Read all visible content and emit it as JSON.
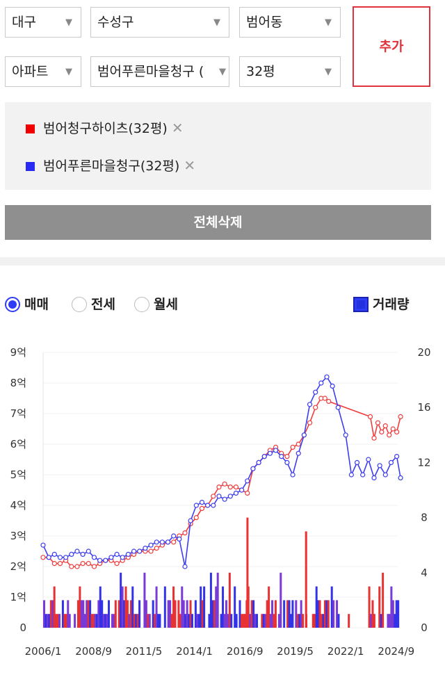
{
  "filters": {
    "city": "대구",
    "district": "수성구",
    "dong": "범어동",
    "type": "아파트",
    "complex": "범어푸른마을청구 (",
    "size": "32평",
    "add_label": "추가"
  },
  "compare": {
    "items": [
      {
        "label": "범어청구하이츠(32평)",
        "color": "#f00000",
        "remove": "✕"
      },
      {
        "label": "범어푸른마을청구(32평)",
        "color": "#2a2af5",
        "remove": "✕"
      }
    ],
    "clear_label": "전체삭제"
  },
  "options": {
    "trade_types": [
      "매매",
      "전세",
      "월세"
    ],
    "selected": "매매",
    "volume_label": "거래량"
  },
  "chart_data": {
    "type": "line",
    "x_ticks": [
      "2006/1",
      "2008/9",
      "2011/5",
      "2014/1",
      "2016/9",
      "2019/5",
      "2022/1",
      "2024/9"
    ],
    "y_left_ticks": [
      "0",
      "1억",
      "2억",
      "3억",
      "4억",
      "5억",
      "6억",
      "7억",
      "8억",
      "9억"
    ],
    "y_left_range": [
      0,
      9
    ],
    "y_right_ticks": [
      "0",
      "4",
      "8",
      "12",
      "16",
      "20"
    ],
    "y_right_range": [
      0,
      20
    ],
    "series": [
      {
        "name": "범어청구하이츠(32평)",
        "color": "#f03c3c",
        "x": [
          2006.0,
          2006.3,
          2006.6,
          2006.9,
          2007.2,
          2007.5,
          2007.8,
          2008.1,
          2008.4,
          2008.7,
          2009.0,
          2009.3,
          2009.6,
          2009.9,
          2010.2,
          2010.5,
          2010.8,
          2011.1,
          2011.4,
          2011.7,
          2012.0,
          2012.3,
          2012.6,
          2012.9,
          2013.2,
          2013.5,
          2013.8,
          2014.1,
          2014.4,
          2014.7,
          2015.0,
          2015.3,
          2015.6,
          2015.9,
          2016.2,
          2016.5,
          2016.8,
          2017.1,
          2017.4,
          2017.7,
          2018.0,
          2018.3,
          2018.6,
          2018.9,
          2019.2,
          2019.5,
          2019.8,
          2020.1,
          2020.4,
          2020.7,
          2020.9,
          2021.1,
          2023.3,
          2023.5,
          2023.7,
          2023.9,
          2024.1,
          2024.3,
          2024.5,
          2024.7,
          2024.9
        ],
        "y": [
          2.3,
          2.3,
          2.1,
          2.1,
          2.2,
          2.0,
          2.0,
          2.1,
          2.1,
          2.0,
          2.1,
          2.2,
          2.2,
          2.1,
          2.2,
          2.3,
          2.4,
          2.5,
          2.5,
          2.5,
          2.6,
          2.7,
          2.8,
          2.8,
          3.0,
          3.1,
          3.4,
          3.6,
          3.9,
          4.0,
          4.3,
          4.6,
          4.7,
          4.6,
          4.6,
          4.5,
          4.4,
          5.2,
          5.4,
          5.6,
          5.8,
          5.9,
          5.7,
          5.6,
          5.9,
          6.0,
          6.3,
          6.7,
          7.2,
          7.5,
          7.5,
          7.4,
          6.9,
          6.2,
          6.7,
          6.4,
          6.6,
          6.3,
          6.5,
          6.4,
          6.9
        ]
      },
      {
        "name": "범어푸른마을청구(32평)",
        "color": "#3c3cf0",
        "x": [
          2006.0,
          2006.3,
          2006.6,
          2006.9,
          2007.2,
          2007.5,
          2007.8,
          2008.1,
          2008.4,
          2008.7,
          2009.0,
          2009.3,
          2009.6,
          2009.9,
          2010.2,
          2010.5,
          2010.8,
          2011.1,
          2011.4,
          2011.7,
          2012.0,
          2012.3,
          2012.6,
          2012.9,
          2013.2,
          2013.5,
          2013.8,
          2014.1,
          2014.4,
          2014.7,
          2015.0,
          2015.3,
          2015.6,
          2015.9,
          2016.2,
          2016.5,
          2016.8,
          2017.1,
          2017.4,
          2017.7,
          2018.0,
          2018.3,
          2018.6,
          2018.9,
          2019.2,
          2019.5,
          2019.8,
          2020.1,
          2020.4,
          2020.7,
          2021.0,
          2021.3,
          2021.6,
          2022.0,
          2022.3,
          2022.6,
          2022.9,
          2023.2,
          2023.5,
          2023.8,
          2024.1,
          2024.4,
          2024.7,
          2024.9
        ],
        "y": [
          2.7,
          2.3,
          2.4,
          2.3,
          2.3,
          2.4,
          2.5,
          2.4,
          2.5,
          2.3,
          2.2,
          2.2,
          2.3,
          2.4,
          2.3,
          2.4,
          2.5,
          2.5,
          2.6,
          2.7,
          2.8,
          2.8,
          2.8,
          3.0,
          2.9,
          2.0,
          3.5,
          4.0,
          4.1,
          4.0,
          4.0,
          4.3,
          4.2,
          4.3,
          4.4,
          4.5,
          4.8,
          5.2,
          5.4,
          5.6,
          5.7,
          5.8,
          5.6,
          5.4,
          5.0,
          5.7,
          6.3,
          7.3,
          7.7,
          8.0,
          8.2,
          7.9,
          7.2,
          6.3,
          5.0,
          5.4,
          5.0,
          5.5,
          4.9,
          5.3,
          5.0,
          5.4,
          5.6,
          4.9
        ]
      }
    ],
    "volume_red_x": [
      2016.75,
      2019.85
    ],
    "volume_red_y": [
      8,
      7
    ]
  }
}
